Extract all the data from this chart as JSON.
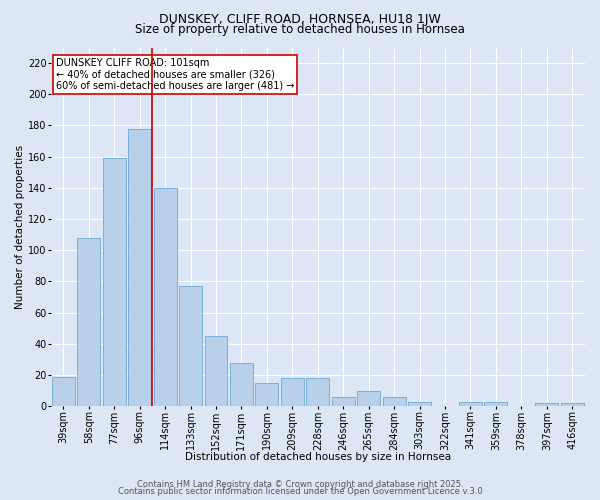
{
  "title": "DUNSKEY, CLIFF ROAD, HORNSEA, HU18 1JW",
  "subtitle": "Size of property relative to detached houses in Hornsea",
  "xlabel": "Distribution of detached houses by size in Hornsea",
  "ylabel": "Number of detached properties",
  "categories": [
    "39sqm",
    "58sqm",
    "77sqm",
    "96sqm",
    "114sqm",
    "133sqm",
    "152sqm",
    "171sqm",
    "190sqm",
    "209sqm",
    "228sqm",
    "246sqm",
    "265sqm",
    "284sqm",
    "303sqm",
    "322sqm",
    "341sqm",
    "359sqm",
    "378sqm",
    "397sqm",
    "416sqm"
  ],
  "values": [
    19,
    108,
    159,
    178,
    140,
    77,
    45,
    28,
    15,
    18,
    18,
    6,
    10,
    6,
    3,
    0,
    3,
    3,
    0,
    2,
    2
  ],
  "bar_color": "#b8d0ea",
  "bar_edge_color": "#6aaad4",
  "bg_color": "#dce6f5",
  "grid_color": "#ffffff",
  "vline_x": 3.5,
  "vline_color": "#cc0000",
  "annotation_text": "DUNSKEY CLIFF ROAD: 101sqm\n← 40% of detached houses are smaller (326)\n60% of semi-detached houses are larger (481) →",
  "annotation_box_facecolor": "#ffffff",
  "annotation_box_edgecolor": "#cc0000",
  "footer1": "Contains HM Land Registry data © Crown copyright and database right 2025.",
  "footer2": "Contains public sector information licensed under the Open Government Licence v.3.0",
  "ylim": [
    0,
    230
  ],
  "yticks": [
    0,
    20,
    40,
    60,
    80,
    100,
    120,
    140,
    160,
    180,
    200,
    220
  ],
  "title_fontsize": 9,
  "subtitle_fontsize": 8.5,
  "ylabel_fontsize": 7.5,
  "xlabel_fontsize": 7.5,
  "tick_fontsize": 7,
  "footer_fontsize": 6
}
